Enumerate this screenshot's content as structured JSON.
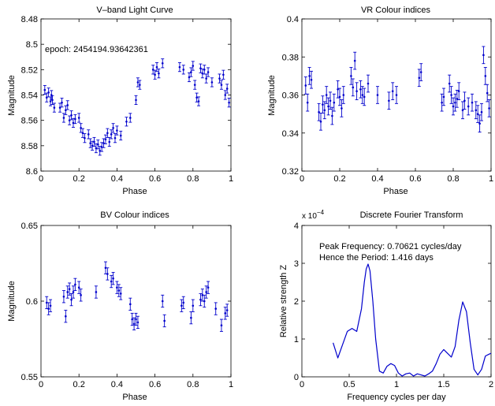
{
  "chart_data": [
    {
      "type": "scatter",
      "title": "V–band Light Curve",
      "xlabel": "Phase",
      "ylabel": "Magnitude",
      "xlim": [
        0,
        1
      ],
      "ylim": [
        8.6,
        8.48
      ],
      "y_reversed": true,
      "xticks": [
        "0",
        "0.2",
        "0.4",
        "0.6",
        "0.8",
        "1"
      ],
      "yticks": [
        "8.48",
        "8.5",
        "8.52",
        "8.54",
        "8.56",
        "8.58",
        "8.6"
      ],
      "annotation": "epoch: 2454194.93642361",
      "color": "#0000cc",
      "error_bar": 0.0035,
      "series": [
        {
          "x": [
            0.02,
            0.03,
            0.04,
            0.05,
            0.055,
            0.06,
            0.07,
            0.1,
            0.11,
            0.12,
            0.13,
            0.14,
            0.15,
            0.16,
            0.17,
            0.18,
            0.2,
            0.21,
            0.22,
            0.23,
            0.25,
            0.26,
            0.27,
            0.28,
            0.29,
            0.3,
            0.31,
            0.32,
            0.33,
            0.34,
            0.35,
            0.36,
            0.37,
            0.38,
            0.39,
            0.4,
            0.42,
            0.45,
            0.47,
            0.5,
            0.51,
            0.52,
            0.59,
            0.6,
            0.61,
            0.62,
            0.64,
            0.73,
            0.75,
            0.78,
            0.79,
            0.8,
            0.81,
            0.82,
            0.83,
            0.84,
            0.85,
            0.86,
            0.87,
            0.88,
            0.9,
            0.94,
            0.95,
            0.96,
            0.97,
            0.98,
            0.99
          ],
          "y": [
            8.536,
            8.542,
            8.538,
            8.545,
            8.54,
            8.544,
            8.55,
            8.55,
            8.546,
            8.558,
            8.552,
            8.548,
            8.56,
            8.556,
            8.562,
            8.559,
            8.558,
            8.566,
            8.57,
            8.574,
            8.571,
            8.578,
            8.58,
            8.577,
            8.582,
            8.579,
            8.584,
            8.581,
            8.578,
            8.575,
            8.57,
            8.577,
            8.571,
            8.566,
            8.574,
            8.568,
            8.572,
            8.561,
            8.558,
            8.544,
            8.53,
            8.532,
            8.52,
            8.524,
            8.518,
            8.523,
            8.515,
            8.518,
            8.52,
            8.526,
            8.522,
            8.517,
            8.532,
            8.542,
            8.545,
            8.519,
            8.523,
            8.52,
            8.527,
            8.522,
            8.53,
            8.527,
            8.532,
            8.524,
            8.54,
            8.535,
            8.546
          ]
        }
      ]
    },
    {
      "type": "scatter",
      "title": "VR Colour indices",
      "xlabel": "Phase",
      "ylabel": "Magnitude",
      "xlim": [
        0,
        1
      ],
      "ylim": [
        0.32,
        0.4
      ],
      "xticks": [
        "0",
        "0.2",
        "0.4",
        "0.6",
        "0.8",
        "1"
      ],
      "yticks": [
        "0.32",
        "0.34",
        "0.36",
        "0.38",
        "0.4"
      ],
      "color": "#0000cc",
      "error_bar": 0.0045,
      "series": [
        {
          "x": [
            0.02,
            0.03,
            0.04,
            0.05,
            0.09,
            0.1,
            0.11,
            0.12,
            0.13,
            0.14,
            0.15,
            0.16,
            0.17,
            0.19,
            0.2,
            0.21,
            0.22,
            0.26,
            0.27,
            0.28,
            0.29,
            0.31,
            0.32,
            0.33,
            0.35,
            0.4,
            0.46,
            0.48,
            0.5,
            0.62,
            0.63,
            0.74,
            0.75,
            0.78,
            0.79,
            0.8,
            0.81,
            0.82,
            0.83,
            0.85,
            0.86,
            0.88,
            0.9,
            0.92,
            0.93,
            0.94,
            0.95,
            0.96,
            0.97,
            0.98,
            0.99
          ],
          "y": [
            0.365,
            0.356,
            0.37,
            0.368,
            0.351,
            0.346,
            0.355,
            0.352,
            0.36,
            0.354,
            0.357,
            0.349,
            0.356,
            0.363,
            0.359,
            0.353,
            0.36,
            0.37,
            0.364,
            0.378,
            0.362,
            0.363,
            0.36,
            0.359,
            0.366,
            0.36,
            0.357,
            0.362,
            0.36,
            0.369,
            0.372,
            0.356,
            0.359,
            0.366,
            0.36,
            0.354,
            0.356,
            0.358,
            0.362,
            0.352,
            0.357,
            0.354,
            0.356,
            0.352,
            0.35,
            0.345,
            0.351,
            0.381,
            0.37,
            0.361,
            0.353
          ]
        }
      ]
    },
    {
      "type": "scatter",
      "title": "BV Colour indices",
      "xlabel": "Phase",
      "ylabel": "Magnitude",
      "xlim": [
        0,
        1
      ],
      "ylim": [
        0.55,
        0.65
      ],
      "xticks": [
        "0",
        "0.2",
        "0.4",
        "0.6",
        "0.8",
        "1"
      ],
      "yticks": [
        "0.55",
        "0.6",
        "0.65"
      ],
      "color": "#0000cc",
      "error_bar": 0.004,
      "series": [
        {
          "x": [
            0.03,
            0.04,
            0.05,
            0.12,
            0.13,
            0.14,
            0.15,
            0.16,
            0.17,
            0.18,
            0.2,
            0.21,
            0.29,
            0.34,
            0.35,
            0.37,
            0.38,
            0.4,
            0.41,
            0.42,
            0.47,
            0.48,
            0.49,
            0.5,
            0.51,
            0.64,
            0.65,
            0.74,
            0.75,
            0.79,
            0.8,
            0.84,
            0.85,
            0.86,
            0.87,
            0.88,
            0.92,
            0.95,
            0.97,
            0.98
          ],
          "y": [
            0.599,
            0.595,
            0.597,
            0.603,
            0.59,
            0.606,
            0.608,
            0.601,
            0.606,
            0.611,
            0.609,
            0.604,
            0.606,
            0.622,
            0.618,
            0.613,
            0.615,
            0.609,
            0.607,
            0.605,
            0.598,
            0.588,
            0.585,
            0.588,
            0.586,
            0.6,
            0.587,
            0.597,
            0.599,
            0.589,
            0.597,
            0.601,
            0.604,
            0.6,
            0.606,
            0.609,
            0.595,
            0.584,
            0.592,
            0.594
          ]
        }
      ]
    },
    {
      "type": "line",
      "title": "Discrete Fourier Transform",
      "xlabel": "Frequency cycles per day",
      "ylabel": "Relative strength Z",
      "xlim": [
        0,
        2
      ],
      "ylim": [
        0,
        4
      ],
      "xticks": [
        "0",
        "0.5",
        "1",
        "1.5",
        "2"
      ],
      "yticks": [
        "0",
        "1",
        "2",
        "3",
        "4"
      ],
      "y_exponent_label": "x 10",
      "y_exponent": "−4",
      "annotations": [
        "Peak Frequency: 0.70621 cycles/day",
        "Hence the Period: 1.416 days"
      ],
      "color": "#0000cc",
      "series": [
        {
          "x": [
            0.33,
            0.38,
            0.43,
            0.48,
            0.53,
            0.58,
            0.63,
            0.66,
            0.68,
            0.7,
            0.72,
            0.75,
            0.78,
            0.82,
            0.86,
            0.9,
            0.94,
            0.98,
            1.02,
            1.06,
            1.1,
            1.14,
            1.18,
            1.22,
            1.26,
            1.3,
            1.34,
            1.38,
            1.42,
            1.46,
            1.5,
            1.54,
            1.58,
            1.62,
            1.66,
            1.7,
            1.74,
            1.78,
            1.82,
            1.86,
            1.9,
            1.94,
            1.98,
            2.0
          ],
          "y": [
            0.9,
            0.5,
            0.85,
            1.2,
            1.28,
            1.2,
            1.8,
            2.5,
            2.85,
            2.98,
            2.8,
            2.0,
            1.0,
            0.15,
            0.1,
            0.28,
            0.35,
            0.3,
            0.1,
            0.02,
            0.08,
            0.1,
            0.02,
            0.08,
            0.05,
            0.02,
            0.08,
            0.15,
            0.35,
            0.6,
            0.72,
            0.62,
            0.52,
            0.8,
            1.5,
            1.98,
            1.72,
            0.9,
            0.2,
            0.05,
            0.2,
            0.55,
            0.6,
            0.62
          ]
        }
      ]
    }
  ]
}
